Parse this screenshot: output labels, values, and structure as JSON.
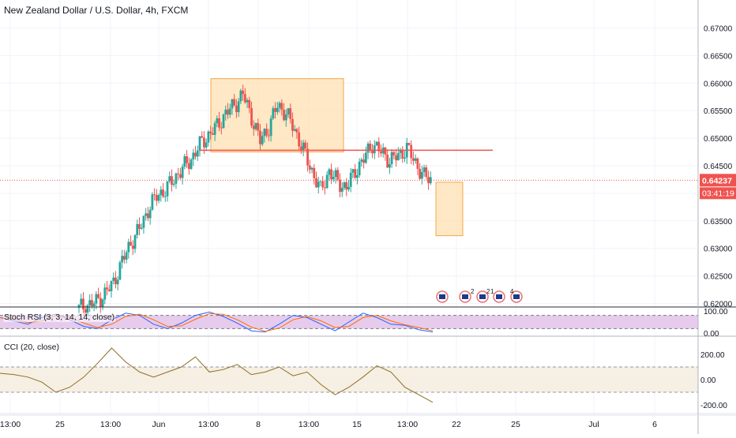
{
  "symbol_title": "New Zealand Dollar / U.S. Dollar, 4h, FXCM",
  "current_price": "0.64237",
  "countdown": "03:41:19",
  "colors": {
    "up": "#26a69a",
    "down": "#ef5350",
    "box_fill": "#ffe0b2",
    "box_stroke": "#f0a848",
    "resistance_line": "#ef5350",
    "price_line": "#ef5350",
    "stoch_k": "#2962ff",
    "stoch_d": "#ff6d00",
    "stoch_band": "#e1bee7",
    "cci_line": "#8d6e23",
    "cci_band": "#f6efe3"
  },
  "price_axis": {
    "ticks": [
      "0.67000",
      "0.66500",
      "0.66000",
      "0.65500",
      "0.65000",
      "0.64500",
      "0.64000",
      "0.63500",
      "0.63000",
      "0.62500",
      "0.62000"
    ],
    "values": [
      0.67,
      0.665,
      0.66,
      0.655,
      0.65,
      0.645,
      0.64,
      0.635,
      0.63,
      0.625,
      0.62
    ]
  },
  "time_axis": {
    "labels": [
      "13:00",
      "25",
      "13:00",
      "Jun",
      "13:00",
      "8",
      "13:00",
      "15",
      "13:00",
      "22",
      "25",
      "Jul",
      "6"
    ]
  },
  "stoch_rsi": {
    "label": "Stoch RSI (3, 3, 14, 14, close)",
    "ticks": [
      "100.00",
      "0.00"
    ],
    "values": [
      100,
      0
    ]
  },
  "cci": {
    "label": "CCI (20, close)",
    "ticks": [
      "200.00",
      "0.00",
      "-200.00"
    ],
    "values": [
      200,
      0,
      -200
    ]
  },
  "events": {
    "labels": [
      "2",
      "2",
      "1",
      "4"
    ]
  },
  "chart_data": {
    "type": "candlestick",
    "title": "New Zealand Dollar / U.S. Dollar, 4h, FXCM",
    "x_range": [
      "13:00",
      "6"
    ],
    "y_range": [
      0.6195,
      0.6725
    ],
    "last_price": 0.64237,
    "resistance_level": 0.6478,
    "zones": [
      {
        "kind": "supply-box",
        "price_low": 0.6475,
        "price_high": 0.6608
      },
      {
        "kind": "target-box",
        "price_low": 0.6323,
        "price_high": 0.642
      }
    ],
    "close_path": [
      [
        0,
        0.6192
      ],
      [
        4,
        0.6196
      ],
      [
        8,
        0.6203
      ],
      [
        12,
        0.6218
      ],
      [
        16,
        0.6238
      ],
      [
        20,
        0.6276
      ],
      [
        24,
        0.631
      ],
      [
        28,
        0.6335
      ],
      [
        32,
        0.637
      ],
      [
        36,
        0.6395
      ],
      [
        40,
        0.6406
      ],
      [
        44,
        0.6426
      ],
      [
        48,
        0.6445
      ],
      [
        52,
        0.6462
      ],
      [
        56,
        0.6488
      ],
      [
        60,
        0.6505
      ],
      [
        64,
        0.6522
      ],
      [
        68,
        0.6545
      ],
      [
        72,
        0.656
      ],
      [
        76,
        0.658
      ],
      [
        80,
        0.6538
      ],
      [
        84,
        0.6495
      ],
      [
        88,
        0.652
      ],
      [
        92,
        0.656
      ],
      [
        96,
        0.6545
      ],
      [
        100,
        0.6515
      ],
      [
        104,
        0.6478
      ],
      [
        108,
        0.644
      ],
      [
        112,
        0.6405
      ],
      [
        116,
        0.644
      ],
      [
        120,
        0.642
      ],
      [
        124,
        0.641
      ],
      [
        128,
        0.644
      ],
      [
        132,
        0.6462
      ],
      [
        136,
        0.649
      ],
      [
        140,
        0.6475
      ],
      [
        144,
        0.646
      ],
      [
        148,
        0.6468
      ],
      [
        152,
        0.6482
      ],
      [
        156,
        0.6455
      ],
      [
        160,
        0.643
      ],
      [
        164,
        0.6424
      ]
    ],
    "stoch_rsi_k": [
      70,
      55,
      40,
      70,
      85,
      60,
      30,
      20,
      60,
      90,
      80,
      40,
      20,
      45,
      80,
      95,
      75,
      45,
      10,
      5,
      40,
      80,
      70,
      40,
      10,
      50,
      90,
      70,
      40,
      35,
      15,
      5
    ],
    "cci_values": [
      50,
      40,
      20,
      -20,
      -100,
      -60,
      20,
      130,
      250,
      140,
      60,
      20,
      60,
      100,
      180,
      60,
      80,
      120,
      40,
      60,
      100,
      30,
      60,
      -40,
      -120,
      -60,
      20,
      110,
      60,
      -60,
      -120,
      -180
    ]
  }
}
